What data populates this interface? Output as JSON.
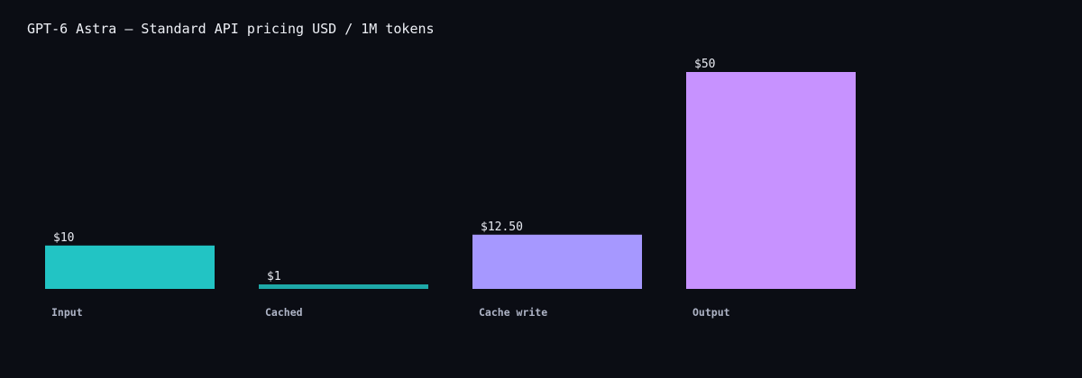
{
  "chart_data": {
    "type": "bar",
    "title": "GPT-6 Astra — Standard API pricing USD / 1M tokens",
    "categories": [
      "Input",
      "Cached",
      "Cache write",
      "Output"
    ],
    "values": [
      10,
      1,
      12.5,
      50
    ],
    "value_labels": [
      "$10",
      "$1",
      "$12.50",
      "$50"
    ],
    "colors": [
      "#22c4c4",
      "#1ea8a8",
      "#a698ff",
      "#c792ff"
    ],
    "ylim": [
      0,
      50
    ],
    "grid": false,
    "legend": "none"
  }
}
